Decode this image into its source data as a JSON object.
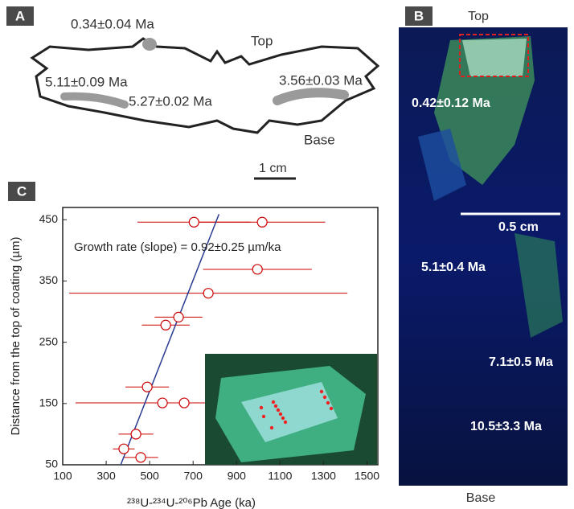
{
  "panels": {
    "a": {
      "label": "A",
      "ages": [
        "0.34±0.04 Ma",
        "5.11±0.09 Ma",
        "5.27±0.02 Ma",
        "3.56±0.03 Ma"
      ],
      "top": "Top",
      "base": "Base",
      "scale": "1 cm"
    },
    "b": {
      "label": "B",
      "top": "Top",
      "base": "Base",
      "ages": [
        "0.42±0.12 Ma",
        "5.1±0.4 Ma",
        "7.1±0.5 Ma",
        "10.5±3.3 Ma"
      ],
      "scale": "0.5 cm"
    },
    "c": {
      "label": "C"
    }
  },
  "chart_data": {
    "type": "scatter",
    "annotation": "Growth rate (slope) = 0.92±0.25  µm/ka",
    "x_label": "²³⁸U-²³⁴U-²⁰⁶Pb Age (ka)",
    "y_label": "Distance from the top of coating (µm)",
    "x": [
      704,
      1018,
      996,
      770,
      633,
      574,
      489,
      559,
      659,
      437,
      381,
      459
    ],
    "y": [
      446,
      446,
      369,
      330,
      291,
      278,
      177,
      151,
      151,
      100,
      76,
      62
    ],
    "xerr": [
      260,
      290,
      250,
      640,
      110,
      110,
      100,
      400,
      100,
      80,
      50,
      80
    ],
    "color": "#cc0000",
    "fit_line": {
      "x": [
        367,
        819
      ],
      "y": [
        50,
        459
      ],
      "color": "#2a3a8f"
    },
    "xlim": [
      100,
      1550
    ],
    "ylim": [
      50,
      470
    ],
    "xticks": [
      100,
      300,
      500,
      700,
      900,
      1100,
      1300,
      1500
    ],
    "yticks": [
      50,
      150,
      250,
      350,
      450
    ]
  }
}
